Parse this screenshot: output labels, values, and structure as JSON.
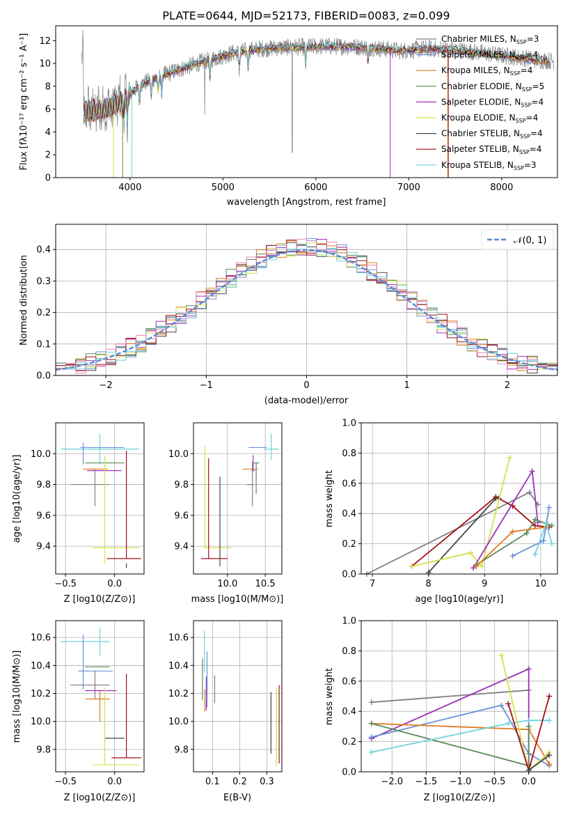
{
  "figure_title": "PLATE=0644, MJD=52173, FIBERID=0083, z=0.099",
  "colors": {
    "models": [
      "#7f7f7f",
      "#6a8fdc",
      "#e07b1f",
      "#5a8a5a",
      "#9b30b8",
      "#d4e24a",
      "#444444",
      "#a50f15",
      "#6fd3dc"
    ],
    "extra": [
      "#e88bb4"
    ],
    "gaussian": "#5b8bd6",
    "grid": "#b0b0b0"
  },
  "chart_data": [
    {
      "id": "spectrum",
      "type": "line",
      "title": "PLATE=0644, MJD=52173, FIBERID=0083, z=0.099",
      "xlabel": "wavelength [Angstrom, rest frame]",
      "ylabel": "Flux [fλ10⁻¹⁷ erg cm⁻² s⁻¹ A⁻¹]",
      "xlim": [
        3200,
        8600
      ],
      "ylim": [
        0,
        13.3
      ],
      "xticks": [
        4000,
        5000,
        6000,
        7000,
        8000
      ],
      "yticks": [
        0,
        2,
        4,
        6,
        8,
        10,
        12
      ],
      "grid": false,
      "legend_position": "upper-right",
      "legend": [
        "Chabrier MILES, N_SSP=3",
        "Salpeter MILES, N_SSP=4",
        "Kroupa MILES, N_SSP=4",
        "Chabrier ELODIE, N_SSP=5",
        "Salpeter ELODIE, N_SSP=4",
        "Kroupa ELODIE, N_SSP=4",
        "Chabrier STELIB, N_SSP=4",
        "Salpeter STELIB, N_SSP=4",
        "Kroupa STELIB, N_SSP=3"
      ],
      "continuum": {
        "x": [
          3500,
          3700,
          3900,
          4100,
          4300,
          4500,
          4800,
          5100,
          5400,
          5700,
          6000,
          6300,
          6600,
          6900,
          7200,
          7500,
          7800,
          8100,
          8400,
          8600
        ],
        "y": [
          5.8,
          5.9,
          6.6,
          8.1,
          8.8,
          9.4,
          10.2,
          10.9,
          11.3,
          11.4,
          11.5,
          11.5,
          11.4,
          11.1,
          11.3,
          11.2,
          10.9,
          10.6,
          10.3,
          10.2
        ]
      }
    },
    {
      "id": "residuals",
      "type": "histogram",
      "xlabel": "(data-model)/error",
      "ylabel": "Normed distribution",
      "xlim": [
        -2.5,
        2.5
      ],
      "ylim": [
        0,
        0.48
      ],
      "xticks": [
        -2,
        -1,
        0,
        1,
        2
      ],
      "yticks": [
        0,
        0.1,
        0.2,
        0.3,
        0.4
      ],
      "grid": true,
      "legend": [
        "𝒩(0, 1)"
      ],
      "legend_position": "upper-right",
      "bin_width": 0.1,
      "n_models": 9,
      "approx_peak": 0.41
    },
    {
      "id": "age-vs-Z",
      "type": "errorbar",
      "xlabel": "Z [log10(Z/Z⊙)]",
      "ylabel": "age [log10(age/yr)]",
      "xlim": [
        -0.6,
        0.3
      ],
      "ylim": [
        9.22,
        10.2
      ],
      "xticks": [
        -0.5,
        0.0
      ],
      "yticks": [
        9.4,
        9.6,
        9.8,
        10.0
      ],
      "points": [
        {
          "c": 9,
          "x": -0.15,
          "y": 10.03,
          "xe": [
            0.4,
            0.4
          ],
          "ye": [
            0.1,
            0.1
          ]
        },
        {
          "c": 2,
          "x": -0.1,
          "y": 10.04,
          "xe": [
            0.25,
            0.2
          ],
          "ye": [
            0.0,
            0.0
          ]
        },
        {
          "c": 2,
          "x": -0.32,
          "y": 10.0,
          "xe": [
            0.0,
            0.0
          ],
          "ye": [
            0.07,
            0.07
          ]
        },
        {
          "c": 4,
          "x": -0.2,
          "y": 9.94,
          "xe": [
            0.1,
            0.3
          ],
          "ye": [
            0.0,
            0.0
          ]
        },
        {
          "c": 3,
          "x": -0.12,
          "y": 9.9,
          "xe": [
            0.2,
            0.05
          ],
          "ye": [
            0.0,
            0.0
          ]
        },
        {
          "c": 5,
          "x": -0.13,
          "y": 9.89,
          "xe": [
            0.15,
            0.2
          ],
          "ye": [
            0.0,
            0.0
          ]
        },
        {
          "c": 1,
          "x": -0.2,
          "y": 9.8,
          "xe": [
            0.25,
            0.15
          ],
          "ye": [
            0.14,
            0.1
          ]
        },
        {
          "c": 6,
          "x": -0.1,
          "y": 9.39,
          "xe": [
            0.12,
            0.35
          ],
          "ye": [
            0.1,
            0.6
          ]
        },
        {
          "c": 8,
          "x": 0.12,
          "y": 9.32,
          "xe": [
            0.2,
            0.15
          ],
          "ye": [
            0.0,
            0.7
          ]
        },
        {
          "c": 7,
          "x": 0.12,
          "y": 9.29,
          "xe": [
            0.0,
            0.0
          ],
          "ye": [
            0.03,
            0.0
          ]
        }
      ]
    },
    {
      "id": "age-vs-mass",
      "type": "errorbar",
      "xlabel": "mass [log10(M/M⊙)]",
      "ylabel": "",
      "xlim": [
        9.55,
        10.72
      ],
      "ylim": [
        9.22,
        10.2
      ],
      "xticks": [
        10.0,
        10.5
      ],
      "yticks": [
        9.4,
        9.6,
        9.8,
        10.0
      ],
      "points": [
        {
          "c": 9,
          "x": 10.58,
          "y": 10.03,
          "xe": [
            0.1,
            0.1
          ],
          "ye": [
            0.07,
            0.1
          ]
        },
        {
          "c": 2,
          "x": 10.4,
          "y": 10.04,
          "xe": [
            0.12,
            0.12
          ],
          "ye": [
            0.0,
            0.0
          ]
        },
        {
          "c": 4,
          "x": 10.38,
          "y": 9.94,
          "xe": [
            0.03,
            0.04
          ],
          "ye": [
            0.2,
            0.0
          ]
        },
        {
          "c": 3,
          "x": 10.3,
          "y": 9.9,
          "xe": [
            0.1,
            0.1
          ],
          "ye": [
            0.0,
            0.0
          ]
        },
        {
          "c": 5,
          "x": 10.34,
          "y": 9.89,
          "xe": [
            0.02,
            0.02
          ],
          "ye": [
            0.0,
            0.1
          ]
        },
        {
          "c": 1,
          "x": 10.33,
          "y": 9.8,
          "xe": [
            0.08,
            0.02
          ],
          "ye": [
            0.14,
            0.15
          ]
        },
        {
          "c": 6,
          "x": 9.7,
          "y": 9.39,
          "xe": [
            0.02,
            0.35
          ],
          "ye": [
            0.0,
            0.66
          ]
        },
        {
          "c": 8,
          "x": 9.75,
          "y": 9.32,
          "xe": [
            0.1,
            0.25
          ],
          "ye": [
            0.0,
            0.65
          ]
        },
        {
          "c": 7,
          "x": 9.9,
          "y": 9.27,
          "xe": [
            0.0,
            0.0
          ],
          "ye": [
            0.0,
            0.58
          ]
        }
      ]
    },
    {
      "id": "weight-vs-age",
      "type": "line",
      "xlabel": "age  [log10(age/yr)]",
      "ylabel": "mass weight",
      "xlim": [
        6.8,
        10.3
      ],
      "ylim": [
        0,
        1.0
      ],
      "xticks": [
        7,
        8,
        9,
        10
      ],
      "yticks": [
        0.0,
        0.2,
        0.4,
        0.6,
        0.8,
        1.0
      ],
      "grid": true,
      "series": [
        {
          "c": 1,
          "x": [
            6.9,
            9.8,
            9.95
          ],
          "y": [
            0.0,
            0.54,
            0.46
          ]
        },
        {
          "c": 8,
          "x": [
            7.7,
            9.2,
            9.5,
            9.9,
            10.15
          ],
          "y": [
            0.05,
            0.51,
            0.45,
            0.32,
            0.31
          ]
        },
        {
          "c": 7,
          "x": [
            8.0,
            9.2,
            9.25
          ],
          "y": [
            0.01,
            0.5,
            0.5
          ]
        },
        {
          "c": 6,
          "x": [
            7.7,
            8.75,
            8.95,
            9.45
          ],
          "y": [
            0.05,
            0.14,
            0.05,
            0.77
          ]
        },
        {
          "c": 5,
          "x": [
            8.8,
            9.85,
            9.95
          ],
          "y": [
            0.04,
            0.68,
            0.34
          ]
        },
        {
          "c": 4,
          "x": [
            8.85,
            9.75,
            9.9,
            10.2
          ],
          "y": [
            0.06,
            0.27,
            0.36,
            0.32
          ]
        },
        {
          "c": 2,
          "x": [
            9.5,
            10.05,
            10.15
          ],
          "y": [
            0.12,
            0.22,
            0.44
          ]
        },
        {
          "c": 3,
          "x": [
            8.85,
            9.5,
            10.1
          ],
          "y": [
            0.05,
            0.28,
            0.31
          ]
        },
        {
          "c": 9,
          "x": [
            9.9,
            10.1,
            10.2
          ],
          "y": [
            0.13,
            0.34,
            0.2
          ]
        }
      ]
    },
    {
      "id": "mass-vs-Z",
      "type": "errorbar",
      "xlabel": "Z [log10(Z/Z⊙)]",
      "ylabel": "mass [log10(M/M⊙)]",
      "xlim": [
        -0.6,
        0.3
      ],
      "ylim": [
        9.64,
        10.72
      ],
      "xticks": [
        -0.5,
        0.0
      ],
      "yticks": [
        9.8,
        10.0,
        10.2,
        10.4,
        10.6
      ],
      "points": [
        {
          "c": 9,
          "x": -0.15,
          "y": 10.57,
          "xe": [
            0.4,
            0.1
          ],
          "ye": [
            0.1,
            0.1
          ]
        },
        {
          "c": 4,
          "x": -0.2,
          "y": 10.39,
          "xe": [
            0.1,
            0.15
          ],
          "ye": [
            0.0,
            0.0
          ]
        },
        {
          "c": 2,
          "x": -0.32,
          "y": 10.36,
          "xe": [
            0.05,
            0.3
          ],
          "ye": [
            0.13,
            0.26
          ]
        },
        {
          "c": 1,
          "x": -0.2,
          "y": 10.26,
          "xe": [
            0.25,
            0.15
          ],
          "ye": [
            0.1,
            0.1
          ]
        },
        {
          "c": 5,
          "x": -0.2,
          "y": 10.22,
          "xe": [
            0.1,
            0.22
          ],
          "ye": [
            0.0,
            0.0
          ]
        },
        {
          "c": 3,
          "x": -0.15,
          "y": 10.16,
          "xe": [
            0.15,
            0.1
          ],
          "ye": [
            0.16,
            0.06
          ]
        },
        {
          "c": 7,
          "x": -0.1,
          "y": 9.88,
          "xe": [
            0.0,
            0.2
          ],
          "ye": [
            0.0,
            0.0
          ]
        },
        {
          "c": 8,
          "x": 0.12,
          "y": 9.74,
          "xe": [
            0.15,
            0.15
          ],
          "ye": [
            0.0,
            0.6
          ]
        },
        {
          "c": 6,
          "x": -0.1,
          "y": 9.69,
          "xe": [
            0.12,
            0.35
          ],
          "ye": [
            0.0,
            0.55
          ]
        }
      ]
    },
    {
      "id": "mass-vs-ebv",
      "type": "errorbar",
      "xlabel": "E(B-V)",
      "ylabel": "",
      "xlim": [
        0.03,
        0.355
      ],
      "ylim": [
        9.64,
        10.72
      ],
      "xticks": [
        0.1,
        0.2,
        0.3
      ],
      "yticks": [
        9.8,
        10.0,
        10.2,
        10.4,
        10.6
      ],
      "points": [
        {
          "c": 9,
          "x": 0.07,
          "y": 10.5,
          "xe": [
            0.0,
            0.0
          ],
          "ye": [
            0.15,
            0.15
          ]
        },
        {
          "c": 2,
          "x": 0.08,
          "y": 10.3,
          "xe": [
            0.0,
            0.0
          ],
          "ye": [
            0.2,
            0.2
          ]
        },
        {
          "c": 4,
          "x": 0.063,
          "y": 10.3,
          "xe": [
            0.0,
            0.0
          ],
          "ye": [
            0.15,
            0.15
          ]
        },
        {
          "c": 5,
          "x": 0.077,
          "y": 10.2,
          "xe": [
            0.0,
            0.0
          ],
          "ye": [
            0.12,
            0.12
          ]
        },
        {
          "c": 3,
          "x": 0.072,
          "y": 10.15,
          "xe": [
            0.0,
            0.0
          ],
          "ye": [
            0.08,
            0.08
          ]
        },
        {
          "c": 1,
          "x": 0.108,
          "y": 10.23,
          "xe": [
            0.0,
            0.0
          ],
          "ye": [
            0.1,
            0.1
          ]
        },
        {
          "c": 7,
          "x": 0.315,
          "y": 9.99,
          "xe": [
            0.0,
            0.0
          ],
          "ye": [
            0.22,
            0.22
          ]
        },
        {
          "c": 6,
          "x": 0.335,
          "y": 9.96,
          "xe": [
            0.0,
            0.0
          ],
          "ye": [
            0.28,
            0.28
          ]
        },
        {
          "c": 8,
          "x": 0.345,
          "y": 9.98,
          "xe": [
            0.0,
            0.0
          ],
          "ye": [
            0.28,
            0.28
          ]
        }
      ]
    },
    {
      "id": "weight-vs-Z",
      "type": "line",
      "xlabel": "Z [log10(Z/Z⊙)]",
      "ylabel": "mass weight",
      "xlim": [
        -2.45,
        0.42
      ],
      "ylim": [
        0,
        1.0
      ],
      "xticks": [
        -2.0,
        -1.5,
        -1.0,
        -0.5,
        0.0
      ],
      "yticks": [
        0.0,
        0.2,
        0.4,
        0.6,
        0.8,
        1.0
      ],
      "grid": true,
      "series": [
        {
          "c": 1,
          "x": [
            -2.3,
            0.0
          ],
          "y": [
            0.46,
            0.54
          ]
        },
        {
          "c": 5,
          "x": [
            -2.3,
            0.0,
            0.0
          ],
          "y": [
            0.22,
            0.68,
            0.05
          ]
        },
        {
          "c": 2,
          "x": [
            -2.3,
            -0.4,
            0.0,
            0.3
          ],
          "y": [
            0.23,
            0.44,
            0.12,
            0.04
          ]
        },
        {
          "c": 3,
          "x": [
            -2.3,
            0.0,
            0.3
          ],
          "y": [
            0.32,
            0.28,
            0.05
          ]
        },
        {
          "c": 4,
          "x": [
            -2.3,
            0.0,
            0.0
          ],
          "y": [
            0.32,
            0.04,
            0.3
          ]
        },
        {
          "c": 9,
          "x": [
            -2.3,
            -0.3,
            0.0,
            0.3
          ],
          "y": [
            0.13,
            0.32,
            0.34,
            0.34
          ]
        },
        {
          "c": 6,
          "x": [
            -0.4,
            0.0,
            0.3
          ],
          "y": [
            0.77,
            0.01,
            0.13
          ]
        },
        {
          "c": 8,
          "x": [
            -0.3,
            0.0,
            0.3
          ],
          "y": [
            0.45,
            0.01,
            0.5
          ]
        },
        {
          "c": 7,
          "x": [
            0.0,
            0.3
          ],
          "y": [
            0.01,
            0.11
          ]
        }
      ]
    }
  ]
}
